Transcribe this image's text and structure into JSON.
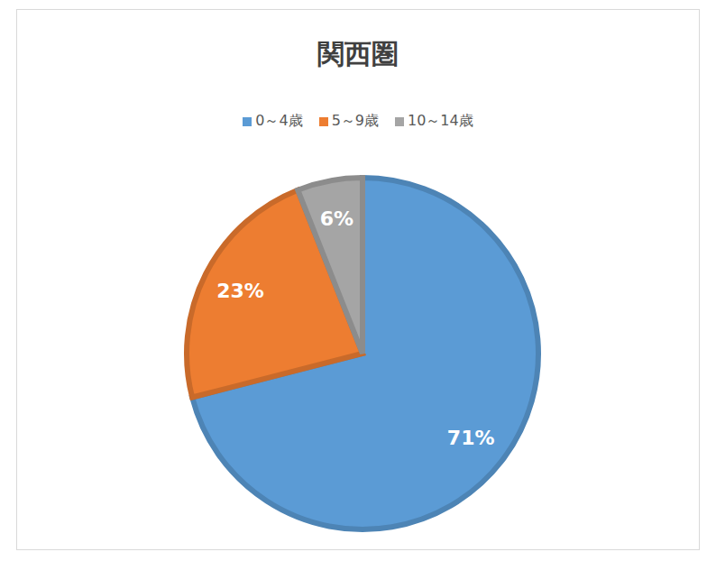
{
  "chart_data": {
    "type": "pie",
    "title": "関西圏",
    "categories": [
      "0～4歳",
      "5～9歳",
      "10～14歳"
    ],
    "values": [
      71,
      23,
      6
    ],
    "value_labels": [
      "71%",
      "23%",
      "6%"
    ],
    "colors": [
      "#5b9bd5",
      "#ed7d31",
      "#a5a5a5"
    ],
    "data_labels": true,
    "legend": "top"
  }
}
